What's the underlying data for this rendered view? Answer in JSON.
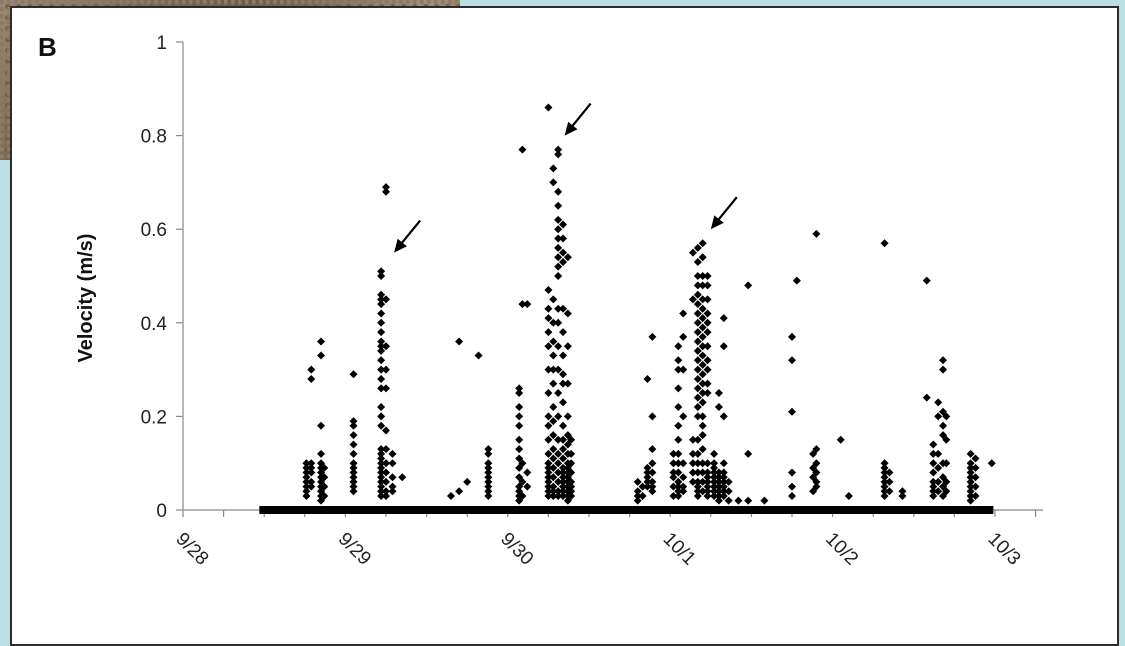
{
  "figure": {
    "panel_label": "B",
    "background_color": "#b9dfe0",
    "marker_color": "#000000"
  },
  "chart_data": {
    "type": "scatter",
    "title": "",
    "xlabel": "",
    "ylabel": "Velocity (m/s)",
    "xlim": [
      "9/28",
      "10/3"
    ],
    "ylim": [
      0,
      1
    ],
    "x_ticks": [
      "9/28",
      "9/29",
      "9/30",
      "10/1",
      "10/2",
      "10/3"
    ],
    "y_ticks": [
      "0",
      "0.2",
      "0.4",
      "0.6",
      "0.8",
      "1"
    ],
    "grid": false,
    "legend": "none",
    "marker": "diamond",
    "annotations": [
      {
        "type": "arrow",
        "x_days": 1.3,
        "y": 0.55
      },
      {
        "type": "arrow",
        "x_days": 2.35,
        "y": 0.8
      },
      {
        "type": "arrow",
        "x_days": 3.25,
        "y": 0.6
      }
    ],
    "baseline_zero_range_days": [
      0.47,
      4.99
    ],
    "series": [
      {
        "clusters": [
          {
            "x_days": 0.76,
            "values": [
              0.04,
              0.05,
              0.06,
              0.07,
              0.08,
              0.09,
              0.1,
              0.03
            ]
          },
          {
            "x_days": 0.79,
            "values": [
              0.3,
              0.28,
              0.06,
              0.08,
              0.1,
              0.05,
              0.09
            ]
          },
          {
            "x_days": 0.85,
            "values": [
              0.36,
              0.33,
              0.18,
              0.12,
              0.1,
              0.09,
              0.08,
              0.07,
              0.06,
              0.05,
              0.04,
              0.03,
              0.02
            ]
          },
          {
            "x_days": 0.87,
            "values": [
              0.09,
              0.07,
              0.05,
              0.03
            ]
          },
          {
            "x_days": 1.05,
            "values": [
              0.29,
              0.19,
              0.18,
              0.16,
              0.14,
              0.12,
              0.1,
              0.09,
              0.08,
              0.07,
              0.06,
              0.05,
              0.04
            ]
          },
          {
            "x_days": 1.22,
            "values": [
              0.51,
              0.5,
              0.46,
              0.45,
              0.44,
              0.42,
              0.4,
              0.38,
              0.36,
              0.35,
              0.34,
              0.32,
              0.3,
              0.28,
              0.26,
              0.22,
              0.2,
              0.18,
              0.13,
              0.12,
              0.11,
              0.1,
              0.09,
              0.08,
              0.07,
              0.06,
              0.05,
              0.04,
              0.03
            ]
          },
          {
            "x_days": 1.25,
            "values": [
              0.69,
              0.68,
              0.45,
              0.35,
              0.3,
              0.26,
              0.17,
              0.13,
              0.1,
              0.08,
              0.06,
              0.04,
              0.03
            ]
          },
          {
            "x_days": 1.29,
            "values": [
              0.12,
              0.1,
              0.07,
              0.05,
              0.04
            ]
          },
          {
            "x_days": 1.35,
            "values": [
              0.07
            ]
          },
          {
            "x_days": 1.65,
            "values": [
              0.03
            ]
          },
          {
            "x_days": 1.7,
            "values": [
              0.36,
              0.04
            ]
          },
          {
            "x_days": 1.75,
            "values": [
              0.06
            ]
          },
          {
            "x_days": 1.82,
            "values": [
              0.33
            ]
          },
          {
            "x_days": 1.88,
            "values": [
              0.13,
              0.12,
              0.1,
              0.09,
              0.08,
              0.07,
              0.06,
              0.05,
              0.04,
              0.03
            ]
          },
          {
            "x_days": 2.07,
            "values": [
              0.26,
              0.25,
              0.22,
              0.2,
              0.18,
              0.15,
              0.13,
              0.11,
              0.09,
              0.07,
              0.05,
              0.04,
              0.03,
              0.02
            ]
          },
          {
            "x_days": 2.09,
            "values": [
              0.77,
              0.44,
              0.1,
              0.06,
              0.03
            ]
          },
          {
            "x_days": 2.12,
            "values": [
              0.44,
              0.08,
              0.05
            ]
          },
          {
            "x_days": 2.25,
            "values": [
              0.86,
              0.47,
              0.43,
              0.41,
              0.38,
              0.35,
              0.3,
              0.25,
              0.2,
              0.18,
              0.15,
              0.12,
              0.1,
              0.09,
              0.08,
              0.07,
              0.06,
              0.05,
              0.04,
              0.03
            ]
          },
          {
            "x_days": 2.28,
            "values": [
              0.73,
              0.7,
              0.45,
              0.4,
              0.36,
              0.33,
              0.3,
              0.27,
              0.22,
              0.19,
              0.16,
              0.13,
              0.11,
              0.09,
              0.07,
              0.05,
              0.04,
              0.03
            ]
          },
          {
            "x_days": 2.31,
            "values": [
              0.77,
              0.76,
              0.68,
              0.65,
              0.62,
              0.6,
              0.58,
              0.56,
              0.54,
              0.52,
              0.5,
              0.43,
              0.4,
              0.35,
              0.3,
              0.25,
              0.2,
              0.15,
              0.12,
              0.1,
              0.08,
              0.06,
              0.04,
              0.03
            ]
          },
          {
            "x_days": 2.34,
            "values": [
              0.61,
              0.58,
              0.55,
              0.53,
              0.43,
              0.38,
              0.33,
              0.29,
              0.27,
              0.23,
              0.18,
              0.15,
              0.13,
              0.11,
              0.09,
              0.08,
              0.07,
              0.06,
              0.05,
              0.04,
              0.03
            ]
          },
          {
            "x_days": 2.37,
            "values": [
              0.54,
              0.42,
              0.35,
              0.27,
              0.2,
              0.16,
              0.14,
              0.12,
              0.1,
              0.09,
              0.08,
              0.07,
              0.06,
              0.05,
              0.04,
              0.03,
              0.02
            ]
          },
          {
            "x_days": 2.39,
            "values": [
              0.15,
              0.12,
              0.1,
              0.08,
              0.06,
              0.05,
              0.04,
              0.03
            ]
          },
          {
            "x_days": 2.8,
            "values": [
              0.06,
              0.04,
              0.03,
              0.02
            ]
          },
          {
            "x_days": 2.83,
            "values": [
              0.05,
              0.03
            ]
          },
          {
            "x_days": 2.86,
            "values": [
              0.28,
              0.09,
              0.08,
              0.07,
              0.06,
              0.05
            ]
          },
          {
            "x_days": 2.89,
            "values": [
              0.37,
              0.2,
              0.13,
              0.1,
              0.08,
              0.06,
              0.05,
              0.04
            ]
          },
          {
            "x_days": 3.02,
            "values": [
              0.12,
              0.1,
              0.08,
              0.07,
              0.05,
              0.03
            ]
          },
          {
            "x_days": 3.05,
            "values": [
              0.35,
              0.32,
              0.3,
              0.26,
              0.22,
              0.18,
              0.15,
              0.12,
              0.1,
              0.08,
              0.06,
              0.05,
              0.04,
              0.03
            ]
          },
          {
            "x_days": 3.08,
            "values": [
              0.42,
              0.37,
              0.3,
              0.2,
              0.1,
              0.07,
              0.05,
              0.04
            ]
          },
          {
            "x_days": 3.14,
            "values": [
              0.55,
              0.45,
              0.15,
              0.12,
              0.1,
              0.08,
              0.06
            ]
          },
          {
            "x_days": 3.17,
            "values": [
              0.56,
              0.53,
              0.5,
              0.48,
              0.46,
              0.44,
              0.42,
              0.4,
              0.38,
              0.36,
              0.34,
              0.32,
              0.3,
              0.28,
              0.26,
              0.24,
              0.22,
              0.2,
              0.15,
              0.12,
              0.1,
              0.08,
              0.06,
              0.05,
              0.04,
              0.03
            ]
          },
          {
            "x_days": 3.2,
            "values": [
              0.57,
              0.54,
              0.5,
              0.48,
              0.45,
              0.43,
              0.41,
              0.39,
              0.37,
              0.35,
              0.33,
              0.31,
              0.29,
              0.27,
              0.25,
              0.23,
              0.2,
              0.18,
              0.16,
              0.13,
              0.1,
              0.08,
              0.06,
              0.04
            ]
          },
          {
            "x_days": 3.23,
            "values": [
              0.5,
              0.48,
              0.45,
              0.42,
              0.4,
              0.38,
              0.35,
              0.32,
              0.3,
              0.27,
              0.25,
              0.1,
              0.08,
              0.07,
              0.06,
              0.05,
              0.04,
              0.03
            ]
          },
          {
            "x_days": 3.27,
            "values": [
              0.12,
              0.1,
              0.09,
              0.08,
              0.07,
              0.06,
              0.05,
              0.04,
              0.03
            ]
          },
          {
            "x_days": 3.3,
            "values": [
              0.25,
              0.22,
              0.08,
              0.07,
              0.06,
              0.05,
              0.04,
              0.03,
              0.02
            ]
          },
          {
            "x_days": 3.33,
            "values": [
              0.41,
              0.35,
              0.2,
              0.1,
              0.08,
              0.07,
              0.06,
              0.05,
              0.04,
              0.03
            ]
          },
          {
            "x_days": 3.36,
            "values": [
              0.06,
              0.04,
              0.02
            ]
          },
          {
            "x_days": 3.42,
            "values": [
              0.02
            ]
          },
          {
            "x_days": 3.48,
            "values": [
              0.48,
              0.12,
              0.02
            ]
          },
          {
            "x_days": 3.58,
            "values": [
              0.02
            ]
          },
          {
            "x_days": 3.75,
            "values": [
              0.37,
              0.32,
              0.21,
              0.08,
              0.05,
              0.03
            ]
          },
          {
            "x_days": 3.78,
            "values": [
              0.49
            ]
          },
          {
            "x_days": 3.9,
            "values": [
              0.59,
              0.13,
              0.1,
              0.08,
              0.06,
              0.05
            ]
          },
          {
            "x_days": 3.88,
            "values": [
              0.12,
              0.09,
              0.07,
              0.04
            ]
          },
          {
            "x_days": 4.05,
            "values": [
              0.15
            ]
          },
          {
            "x_days": 4.1,
            "values": [
              0.03
            ]
          },
          {
            "x_days": 4.32,
            "values": [
              0.57,
              0.1,
              0.09,
              0.08,
              0.07,
              0.06,
              0.05,
              0.04,
              0.03
            ]
          },
          {
            "x_days": 4.35,
            "values": [
              0.08,
              0.06,
              0.04
            ]
          },
          {
            "x_days": 4.43,
            "values": [
              0.04,
              0.03
            ]
          },
          {
            "x_days": 4.58,
            "values": [
              0.49,
              0.24
            ]
          },
          {
            "x_days": 4.62,
            "values": [
              0.14,
              0.12,
              0.1,
              0.08,
              0.06,
              0.05,
              0.04,
              0.03
            ]
          },
          {
            "x_days": 4.65,
            "values": [
              0.23,
              0.2,
              0.12,
              0.09,
              0.06,
              0.04
            ]
          },
          {
            "x_days": 4.68,
            "values": [
              0.32,
              0.3,
              0.21,
              0.18,
              0.16,
              0.1,
              0.07,
              0.05,
              0.03
            ]
          },
          {
            "x_days": 4.7,
            "values": [
              0.2,
              0.15,
              0.1,
              0.06,
              0.04
            ]
          },
          {
            "x_days": 4.85,
            "values": [
              0.12,
              0.1,
              0.09,
              0.08,
              0.07,
              0.06,
              0.05,
              0.04,
              0.03,
              0.02
            ]
          },
          {
            "x_days": 4.88,
            "values": [
              0.11,
              0.09,
              0.07,
              0.05,
              0.03
            ]
          },
          {
            "x_days": 4.98,
            "values": [
              0.1
            ]
          }
        ]
      }
    ]
  }
}
